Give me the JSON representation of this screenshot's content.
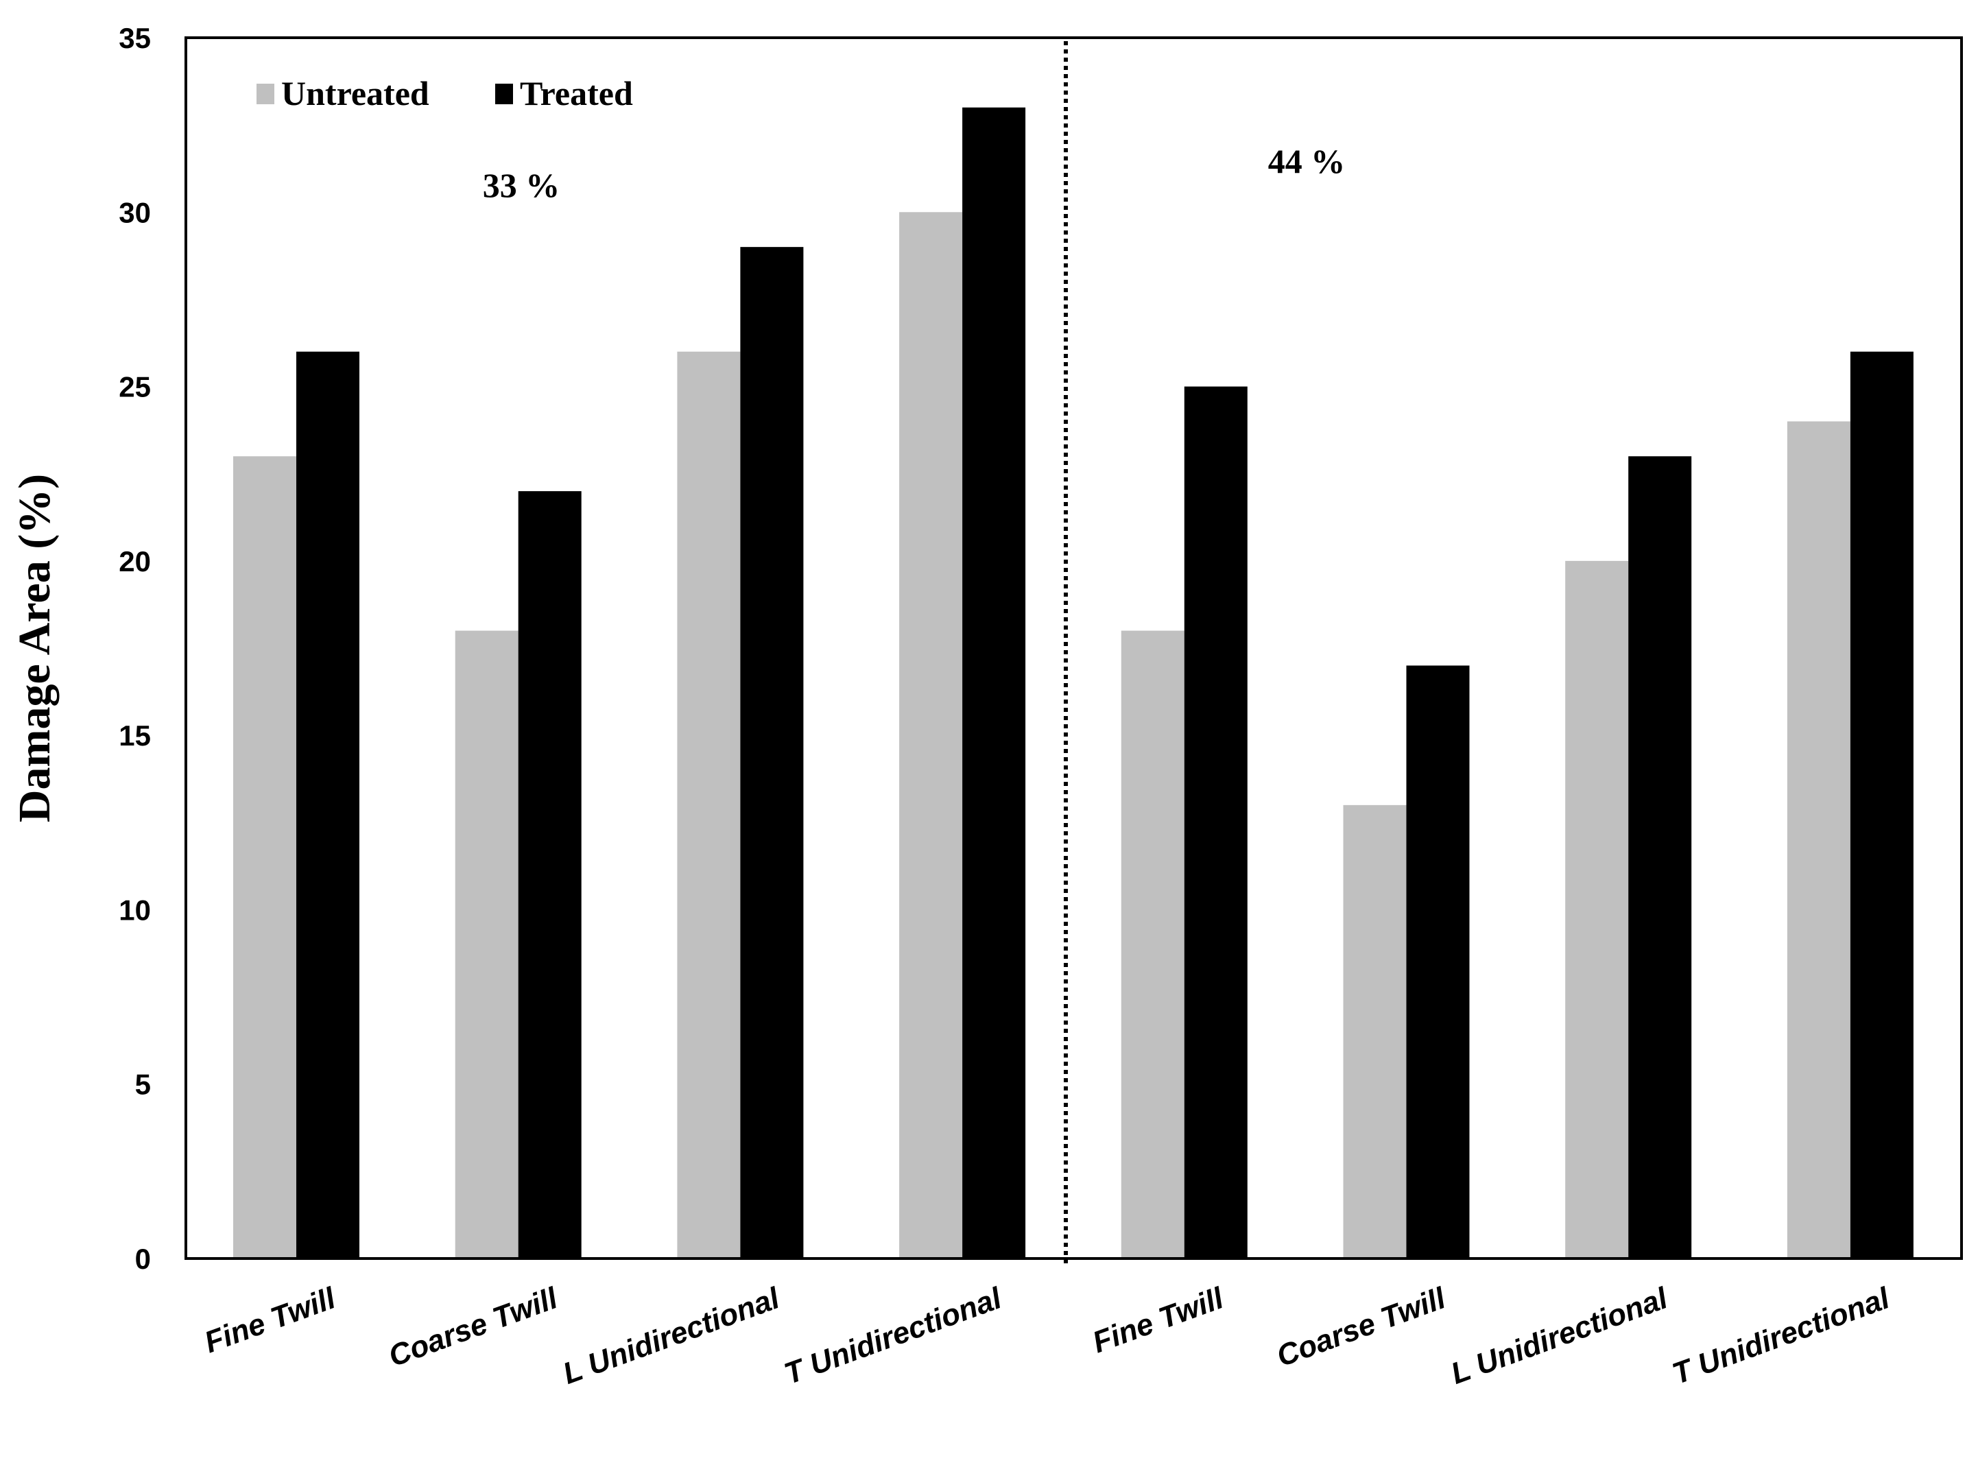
{
  "chart_data": {
    "type": "bar",
    "categories": [
      "Fine Twill",
      "Coarse Twill",
      "L Unidirectional",
      "T Unidirectional",
      "Fine Twill",
      "Coarse Twill",
      "L Unidirectional",
      "T Unidirectional"
    ],
    "series": [
      {
        "name": "Untreated",
        "color": "#c0c0c0",
        "values": [
          23,
          18,
          26,
          30,
          18,
          13,
          20,
          24
        ]
      },
      {
        "name": "Treated",
        "color": "#000000",
        "values": [
          26,
          22,
          29,
          33,
          25,
          17,
          23,
          26
        ]
      }
    ],
    "ylabel": "Damage Area (%)",
    "xlabel": "",
    "ylim": [
      0,
      35
    ],
    "yticks": [
      "0",
      "5",
      "10",
      "15",
      "20",
      "25",
      "30",
      "35"
    ],
    "grid": false,
    "legend_position": "top-left",
    "annotations": [
      "33 %",
      "44 %"
    ],
    "divider": "dotted vertical line between group of 4 categories"
  }
}
